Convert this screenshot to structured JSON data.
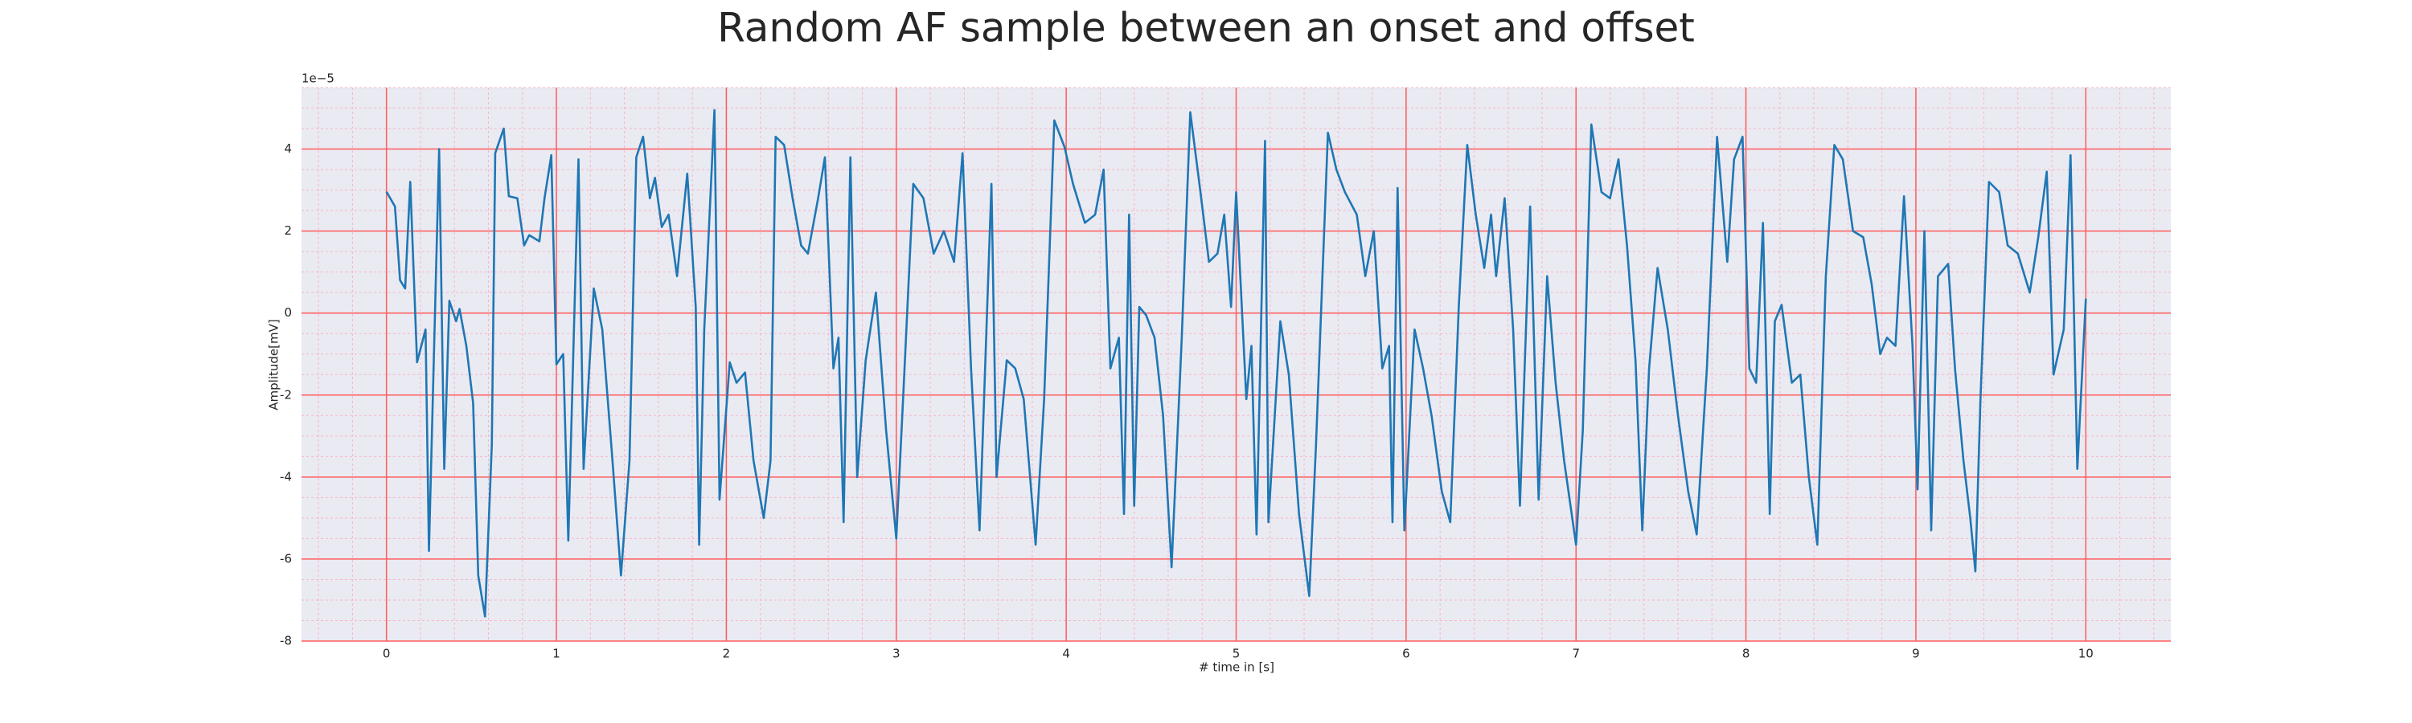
{
  "chart_data": {
    "type": "line",
    "title": "Random AF sample between an onset and offset",
    "xlabel": "# time in [s]",
    "ylabel": "Amplitude[mV]",
    "offset_label": "1e−5",
    "color": "#1f77b4",
    "background": "#eaeaf2",
    "grid": true,
    "grid_color": "#ff5c5c",
    "minor_grid": true,
    "minor_grid_color": "#f7b6c8",
    "minor_xstep": 0.2,
    "minor_ystep": 0.5,
    "xlim": [
      -0.5,
      10.5
    ],
    "ylim": [
      -8,
      5.5
    ],
    "xticks": [
      0,
      1,
      2,
      3,
      4,
      5,
      6,
      7,
      8,
      9,
      10
    ],
    "yticks": [
      -8,
      -6,
      -4,
      -2,
      0,
      2,
      4
    ],
    "x": [
      0,
      0.05,
      0.08,
      0.11,
      0.14,
      0.18,
      0.23,
      0.25,
      0.31,
      0.34,
      0.37,
      0.41,
      0.43,
      0.47,
      0.51,
      0.54,
      0.58,
      0.62,
      0.64,
      0.69,
      0.72,
      0.77,
      0.81,
      0.84,
      0.9,
      0.93,
      0.97,
      1.0,
      1.04,
      1.07,
      1.13,
      1.16,
      1.22,
      1.27,
      1.33,
      1.38,
      1.43,
      1.47,
      1.51,
      1.55,
      1.58,
      1.62,
      1.66,
      1.71,
      1.77,
      1.82,
      1.84,
      1.87,
      1.93,
      1.96,
      2.02,
      2.06,
      2.11,
      2.16,
      2.22,
      2.26,
      2.29,
      2.34,
      2.39,
      2.44,
      2.48,
      2.54,
      2.58,
      2.63,
      2.66,
      2.69,
      2.73,
      2.77,
      2.82,
      2.88,
      2.94,
      3.0,
      3.04,
      3.1,
      3.16,
      3.22,
      3.28,
      3.34,
      3.39,
      3.44,
      3.49,
      3.56,
      3.59,
      3.65,
      3.7,
      3.75,
      3.82,
      3.87,
      3.93,
      3.99,
      4.04,
      4.11,
      4.17,
      4.22,
      4.26,
      4.31,
      4.34,
      4.37,
      4.4,
      4.43,
      4.47,
      4.52,
      4.57,
      4.62,
      4.68,
      4.73,
      4.79,
      4.84,
      4.89,
      4.93,
      4.97,
      5.0,
      5.06,
      5.09,
      5.12,
      5.17,
      5.19,
      5.26,
      5.31,
      5.37,
      5.43,
      5.47,
      5.54,
      5.59,
      5.64,
      5.71,
      5.76,
      5.81,
      5.86,
      5.9,
      5.92,
      5.95,
      5.99,
      6.05,
      6.1,
      6.15,
      6.21,
      6.26,
      6.31,
      6.36,
      6.41,
      6.46,
      6.5,
      6.53,
      6.58,
      6.63,
      6.67,
      6.73,
      6.78,
      6.83,
      6.88,
      6.93,
      7.0,
      7.04,
      7.09,
      7.15,
      7.2,
      7.25,
      7.3,
      7.35,
      7.39,
      7.43,
      7.48,
      7.54,
      7.6,
      7.66,
      7.71,
      7.77,
      7.83,
      7.89,
      7.93,
      7.98,
      8.02,
      8.06,
      8.1,
      8.14,
      8.17,
      8.21,
      8.27,
      8.32,
      8.37,
      8.42,
      8.47,
      8.52,
      8.57,
      8.63,
      8.69,
      8.74,
      8.79,
      8.83,
      8.88,
      8.93,
      8.98,
      9.01,
      9.05,
      9.09,
      9.13,
      9.19,
      9.23,
      9.28,
      9.32,
      9.35,
      9.38,
      9.43,
      9.49,
      9.54,
      9.6,
      9.67,
      9.72,
      9.77,
      9.81,
      9.87,
      9.91,
      9.95,
      10.0
    ],
    "values": [
      2.96,
      2.6,
      0.8,
      0.6,
      3.2,
      -1.2,
      -0.4,
      -5.8,
      4.0,
      -3.8,
      0.3,
      -0.2,
      0.1,
      -0.8,
      -2.2,
      -6.4,
      -7.4,
      -3.2,
      3.9,
      4.5,
      2.85,
      2.8,
      1.65,
      1.9,
      1.75,
      2.8,
      3.85,
      -1.25,
      -1.0,
      -5.55,
      3.75,
      -3.8,
      0.6,
      -0.4,
      -3.6,
      -6.4,
      -3.6,
      3.8,
      4.3,
      2.8,
      3.3,
      2.1,
      2.4,
      0.9,
      3.4,
      0.15,
      -5.65,
      -0.4,
      4.95,
      -4.55,
      -1.2,
      -1.7,
      -1.45,
      -3.6,
      -5.0,
      -3.6,
      4.3,
      4.1,
      2.8,
      1.65,
      1.45,
      2.8,
      3.8,
      -1.35,
      -0.6,
      -5.1,
      3.8,
      -4.0,
      -1.15,
      0.5,
      -2.85,
      -5.5,
      -2.1,
      3.15,
      2.8,
      1.45,
      2.0,
      1.25,
      3.9,
      -1.35,
      -5.3,
      3.15,
      -4.0,
      -1.15,
      -1.35,
      -2.1,
      -5.65,
      -2.1,
      4.7,
      4.05,
      3.15,
      2.2,
      2.4,
      3.5,
      -1.35,
      -0.6,
      -4.9,
      2.4,
      -4.7,
      0.15,
      -0.05,
      -0.6,
      -2.5,
      -6.2,
      -0.6,
      4.9,
      2.95,
      1.25,
      1.45,
      2.4,
      0.15,
      2.95,
      -2.1,
      -0.8,
      -5.4,
      4.2,
      -5.1,
      -0.2,
      -1.5,
      -4.9,
      -6.9,
      -3.2,
      4.4,
      3.5,
      2.95,
      2.4,
      0.9,
      2.0,
      -1.35,
      -0.8,
      -5.1,
      3.05,
      -5.3,
      -0.4,
      -1.35,
      -2.5,
      -4.35,
      -5.1,
      0.15,
      4.1,
      2.4,
      1.1,
      2.4,
      0.9,
      2.8,
      -0.4,
      -4.7,
      2.6,
      -4.55,
      0.9,
      -1.7,
      -3.6,
      -5.65,
      -2.85,
      4.6,
      2.95,
      2.8,
      3.75,
      1.65,
      -1.15,
      -5.3,
      -1.35,
      1.1,
      -0.4,
      -2.5,
      -4.35,
      -5.4,
      -1.35,
      4.3,
      1.25,
      3.75,
      4.3,
      -1.35,
      -1.7,
      2.2,
      -4.9,
      -0.2,
      0.2,
      -1.7,
      -1.5,
      -4.0,
      -5.65,
      0.9,
      4.1,
      3.75,
      2.0,
      1.85,
      0.7,
      -1.0,
      -0.6,
      -0.8,
      2.85,
      -0.8,
      -4.3,
      2.0,
      -5.3,
      0.9,
      1.2,
      -1.35,
      -3.6,
      -5.0,
      -6.3,
      -2.1,
      3.2,
      2.95,
      1.65,
      1.45,
      0.5,
      1.85,
      3.45,
      -1.5,
      -0.4,
      3.85,
      -3.8,
      0.35
    ]
  }
}
